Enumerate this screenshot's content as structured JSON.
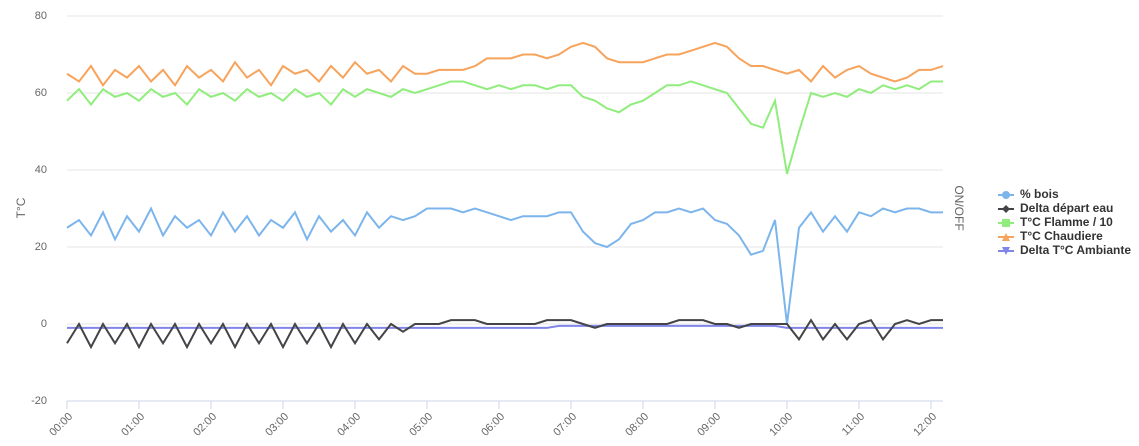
{
  "chart_data": {
    "type": "line",
    "y_label": "T°C",
    "y2_label": "ON/OFF",
    "x": [
      0,
      10,
      20,
      30,
      40,
      50,
      60,
      70,
      80,
      90,
      100,
      110,
      120,
      130,
      140,
      150,
      160,
      170,
      180,
      190,
      200,
      210,
      220,
      230,
      240,
      250,
      260,
      270,
      280,
      290,
      300,
      310,
      320,
      330,
      340,
      350,
      360,
      370,
      380,
      390,
      400,
      410,
      420,
      430,
      440,
      450,
      460,
      470,
      480,
      490,
      500,
      510,
      520,
      530,
      540,
      550,
      560,
      570,
      580,
      590,
      600,
      610,
      620,
      630,
      640,
      650,
      660,
      670,
      680,
      690,
      700,
      710,
      720,
      730
    ],
    "xlim": [
      0,
      730
    ],
    "xticks": [
      {
        "value": 0,
        "label": "00:00"
      },
      {
        "value": 60,
        "label": "01:00"
      },
      {
        "value": 120,
        "label": "02:00"
      },
      {
        "value": 180,
        "label": "03:00"
      },
      {
        "value": 240,
        "label": "04:00"
      },
      {
        "value": 300,
        "label": "05:00"
      },
      {
        "value": 360,
        "label": "06:00"
      },
      {
        "value": 420,
        "label": "07:00"
      },
      {
        "value": 480,
        "label": "08:00"
      },
      {
        "value": 540,
        "label": "09:00"
      },
      {
        "value": 600,
        "label": "10:00"
      },
      {
        "value": 660,
        "label": "11:00"
      },
      {
        "value": 720,
        "label": "12:00"
      }
    ],
    "ylim": [
      -20,
      80
    ],
    "yticks": [
      -20,
      0,
      20,
      40,
      60,
      80
    ],
    "grid": true,
    "legend": "right",
    "series": [
      {
        "name": "% bois",
        "color": "#7cb5ec",
        "marker": "circle",
        "values": [
          25,
          27,
          23,
          29,
          22,
          28,
          24,
          30,
          23,
          28,
          25,
          27,
          23,
          29,
          24,
          28,
          23,
          27,
          25,
          29,
          22,
          28,
          24,
          27,
          23,
          29,
          25,
          28,
          27,
          28,
          30,
          30,
          30,
          29,
          30,
          29,
          28,
          27,
          28,
          28,
          28,
          29,
          29,
          24,
          21,
          20,
          22,
          26,
          27,
          29,
          29,
          30,
          29,
          30,
          27,
          26,
          23,
          18,
          19,
          27,
          0,
          25,
          29,
          24,
          28,
          24,
          29,
          28,
          30,
          29,
          30,
          30,
          29,
          29
        ]
      },
      {
        "name": "Delta départ eau",
        "color": "#434348",
        "marker": "diamond",
        "values": [
          -5,
          0,
          -6,
          0,
          -5,
          0,
          -6,
          0,
          -5,
          0,
          -6,
          0,
          -5,
          0,
          -6,
          0,
          -5,
          0,
          -6,
          0,
          -5,
          0,
          -6,
          0,
          -5,
          0,
          -4,
          0,
          -2,
          0,
          0,
          0,
          1,
          1,
          1,
          0,
          0,
          0,
          0,
          0,
          1,
          1,
          1,
          0,
          -1,
          0,
          0,
          0,
          0,
          0,
          0,
          1,
          1,
          1,
          0,
          0,
          -1,
          0,
          0,
          0,
          0,
          -4,
          1,
          -4,
          0,
          -4,
          0,
          1,
          -4,
          0,
          1,
          0,
          1,
          1
        ]
      },
      {
        "name": "T°C Flamme / 10",
        "color": "#90ed7d",
        "marker": "square",
        "values": [
          58,
          61,
          57,
          61,
          59,
          60,
          58,
          61,
          59,
          60,
          57,
          61,
          59,
          60,
          58,
          61,
          59,
          60,
          58,
          61,
          59,
          60,
          57,
          61,
          59,
          61,
          60,
          59,
          61,
          60,
          61,
          62,
          63,
          63,
          62,
          61,
          62,
          61,
          62,
          62,
          61,
          62,
          62,
          59,
          58,
          56,
          55,
          57,
          58,
          60,
          62,
          62,
          63,
          62,
          61,
          60,
          56,
          52,
          51,
          58,
          39,
          50,
          60,
          59,
          60,
          59,
          61,
          60,
          62,
          61,
          62,
          61,
          63,
          63
        ]
      },
      {
        "name": "T°C Chaudiere",
        "color": "#f7a35c",
        "marker": "triangle",
        "values": [
          65,
          63,
          67,
          62,
          66,
          64,
          67,
          63,
          66,
          62,
          67,
          64,
          66,
          63,
          68,
          64,
          66,
          62,
          67,
          65,
          66,
          63,
          67,
          64,
          68,
          65,
          66,
          63,
          67,
          65,
          65,
          66,
          66,
          66,
          67,
          69,
          69,
          69,
          70,
          70,
          69,
          70,
          72,
          73,
          72,
          69,
          68,
          68,
          68,
          69,
          70,
          70,
          71,
          72,
          73,
          72,
          69,
          67,
          67,
          66,
          65,
          66,
          63,
          67,
          64,
          66,
          67,
          65,
          64,
          63,
          64,
          66,
          66,
          67
        ]
      },
      {
        "name": "Delta T°C Ambiante",
        "color": "#8085e9",
        "marker": "triangle-down",
        "values": [
          -1,
          -1,
          -1,
          -1,
          -1,
          -1,
          -1,
          -1,
          -1,
          -1,
          -1,
          -1,
          -1,
          -1,
          -1,
          -1,
          -1,
          -1,
          -1,
          -1,
          -1,
          -1,
          -1,
          -1,
          -1,
          -1,
          -1,
          -1,
          -1,
          -1,
          -1,
          -1,
          -1,
          -1,
          -1,
          -1,
          -1,
          -1,
          -1,
          -1,
          -1,
          -0.5,
          -0.5,
          -0.5,
          -0.5,
          -0.5,
          -0.5,
          -0.5,
          -0.5,
          -0.5,
          -0.5,
          -0.5,
          -0.5,
          -0.5,
          -0.5,
          -0.5,
          -0.5,
          -0.5,
          -0.5,
          -0.5,
          -1,
          -1,
          -1,
          -1,
          -1,
          -1,
          -1,
          -1,
          -1,
          -1,
          -1,
          -1,
          -1,
          -1
        ]
      }
    ]
  }
}
